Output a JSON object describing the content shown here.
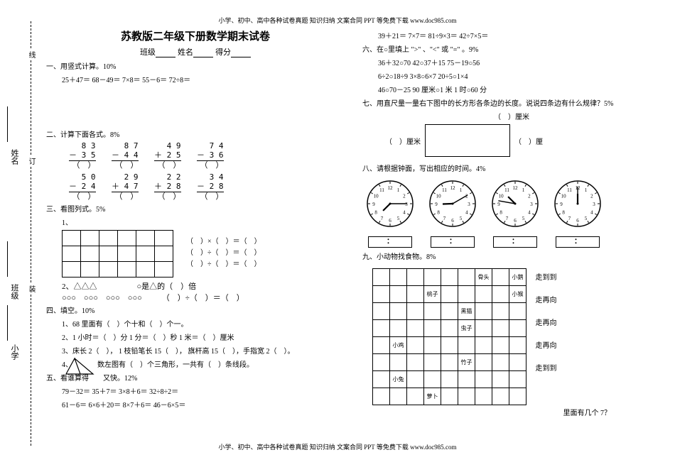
{
  "header_footer": "小学、初中、高中各种试卷真题 知识归纳 文案合同 PPT 等免费下载  www.doc985.com",
  "binding": {
    "xian": "线",
    "ding": "订",
    "zhuang": "装"
  },
  "side": {
    "name": "姓名",
    "class": "班级",
    "school": "小学"
  },
  "title": "苏教版二年级下册数学期末试卷",
  "subtitle_prefix": "班级",
  "subtitle_mid": "姓名",
  "subtitle_end": "得分",
  "q1": {
    "heading": "一、用竖式计算。10%",
    "items": "25＋47＝   68－49＝   7×8＝    55－6＝    72÷8＝"
  },
  "q2": {
    "heading": "二、计算下面各式。8%",
    "row1": [
      "8 3",
      "8 7",
      "4 9",
      "7 4"
    ],
    "row1b": [
      "－ 3  5",
      "－ 4  4",
      "＋ 2  5",
      "－ 3  6"
    ],
    "row2": [
      "5 0",
      "2 9",
      "2 2",
      "3 4"
    ],
    "row2b": [
      "－ 2  4",
      "＋ 4  7",
      "＋ 2  8",
      "－ 2  8"
    ]
  },
  "q3": {
    "heading": "三、看图列式。5%",
    "sub1": "1、",
    "eq1": "（　）×（　）＝（　）",
    "eq2": "（　）÷（　）＝（　）",
    "eq3": "（　）÷（　）＝（　）",
    "sub2_a": "2、△△△",
    "sub2_b": "○是△的（　）倍",
    "sub2_c": "○○○　○○○　○○○　○○○",
    "sub2_eq": "（　）÷（　）＝（　）"
  },
  "q4": {
    "heading": "四、填空。10%",
    "l1": "1、68 里面有（　）个十和（　）个一。",
    "l2": "2、1 小时＝（　）分   1 分＝（　）秒   1 米＝（　）厘米",
    "l3": "3、床长 2（　），   1 枝铅笔长 15（　），   旗杆高 15（　），手指宽 2（　）。",
    "l4": "4、　　　　数左图有（　）个三角形，一共有（　）条线段。"
  },
  "q5": {
    "heading": "五、看谁算得　　又快。12%",
    "l1": "79－32＝    35＋7＝    3×8＋6＝    32÷8÷2＝",
    "l2": "61－6＝    6×6＋20＝   8×7＋6＝    46－6×5＝",
    "l3": "39＋21＝    7×7＝     81÷9×3＝    42÷7×5＝"
  },
  "q6": {
    "heading": "六、在○里填上 \">\" 、\"<\" 或 \"=\" 。9%",
    "l1": "36＋32○70    42○37＋15    75－19○56",
    "l2": "6÷2○18÷9    3×8○6×7     20÷5○1×4",
    "l3": "46○70－25    90 厘米○1 米    1 时○60 分"
  },
  "q7": {
    "heading": "七、用直尺量一量右下图中的长方形各条边的长度。说说四条边有什么规律？5%",
    "top": "（　）厘米",
    "left": "（　）厘米",
    "right": "（　）厘"
  },
  "q8": {
    "heading": "八、请根据钟面，写出相应的时间。4%",
    "clocks": [
      {
        "hour_angle": -135,
        "min_angle": 90
      },
      {
        "hour_angle": -92,
        "min_angle": 60
      },
      {
        "hour_angle": -45,
        "min_angle": -80
      },
      {
        "hour_angle": 0,
        "min_angle": 0
      }
    ],
    "colon": "："
  },
  "q9": {
    "heading": "九、小动物找食物。8%",
    "labels": {
      "0,6": "骨头",
      "0,8": "小鹅",
      "1,3": "桃子",
      "1,8": "小猴",
      "2,5": "黑猫",
      "3,5": "虫子",
      "4,1": "小鸡",
      "5,5": "竹子",
      "6,1": "小兔",
      "7,3": "萝卜"
    },
    "notes": [
      "走到到",
      "走再向",
      "走再向",
      "走再向",
      "走到到"
    ],
    "bottom": "里面有几个 7？"
  },
  "colors": {
    "text": "#000000",
    "bg": "#ffffff"
  }
}
